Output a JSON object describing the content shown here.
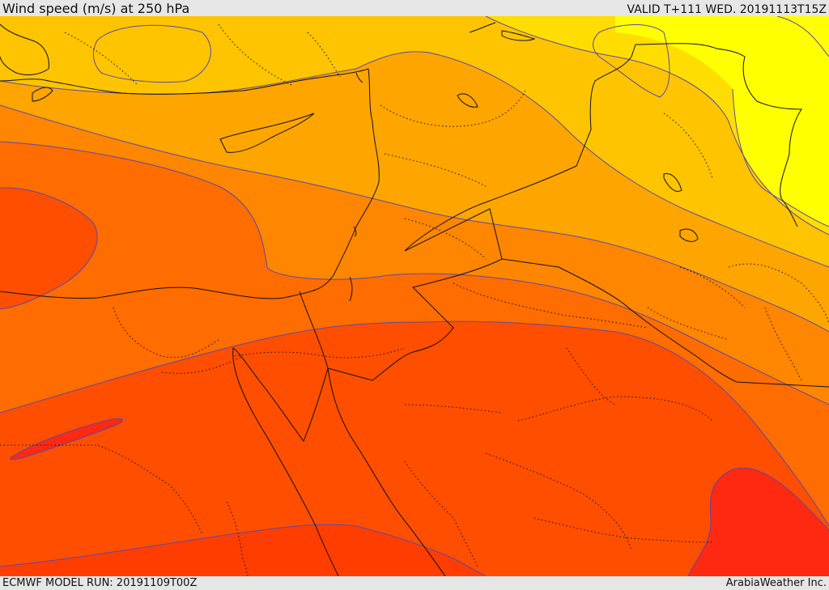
{
  "header": {
    "title": "Wind speed (m/s) at 250 hPa",
    "valid": "VALID T+111 WED. 20191113T15Z"
  },
  "footer": {
    "model_run": "ECMWF MODEL RUN: 20191109T00Z",
    "credit": "ArabiaWeather Inc."
  },
  "map": {
    "colors": {
      "band_1": "#ffff00",
      "band_2": "#ffdd00",
      "band_3": "#ffc400",
      "band_4": "#ffa500",
      "band_5": "#ff8600",
      "band_6": "#ff6c00",
      "band_7": "#ff4e00",
      "band_8": "#ff3d00",
      "band_9": "#ff2810",
      "contour": "#5b4aa8",
      "coast": "#111111"
    }
  }
}
